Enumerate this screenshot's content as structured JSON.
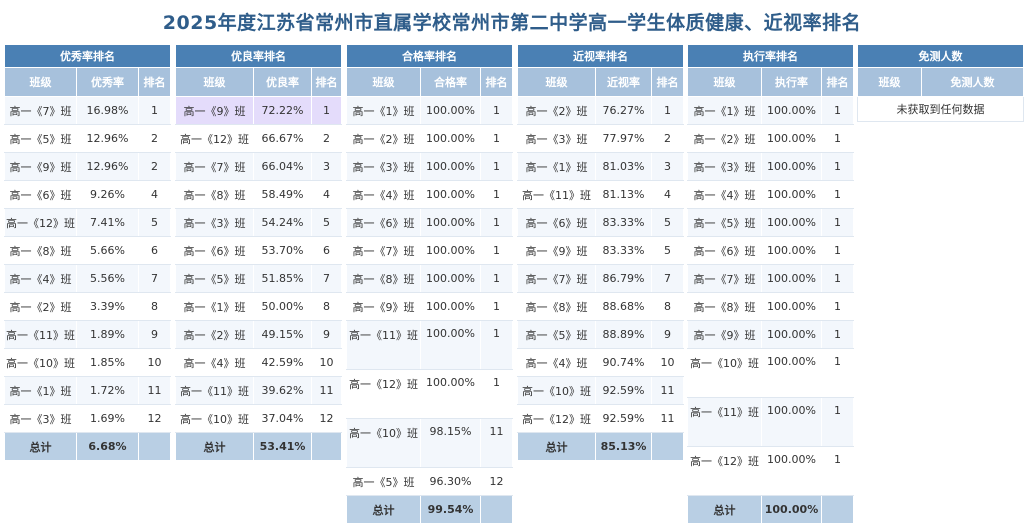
{
  "title": "2025年度江苏省常州市直属学校常州市第二中学高一学生体质健康、近视率排名",
  "panels": [
    {
      "id": "excellent",
      "header": "优秀率排名",
      "columns": [
        "班级",
        "优秀率",
        "排名"
      ],
      "rows": [
        [
          "高一《7》班",
          "16.98%",
          "1"
        ],
        [
          "高一《5》班",
          "12.96%",
          "2"
        ],
        [
          "高一《9》班",
          "12.96%",
          "2"
        ],
        [
          "高一《6》班",
          "9.26%",
          "4"
        ],
        [
          "高一《12》班",
          "7.41%",
          "5"
        ],
        [
          "高一《8》班",
          "5.66%",
          "6"
        ],
        [
          "高一《4》班",
          "5.56%",
          "7"
        ],
        [
          "高一《2》班",
          "3.39%",
          "8"
        ],
        [
          "高一《11》班",
          "1.89%",
          "9"
        ],
        [
          "高一《10》班",
          "1.85%",
          "10"
        ],
        [
          "高一《1》班",
          "1.72%",
          "11"
        ],
        [
          "高一《3》班",
          "1.69%",
          "12"
        ]
      ],
      "total": [
        "总计",
        "6.68%",
        ""
      ]
    },
    {
      "id": "good",
      "header": "优良率排名",
      "columns": [
        "班级",
        "优良率",
        "排名"
      ],
      "rows": [
        [
          "高一《9》班",
          "72.22%",
          "1"
        ],
        [
          "高一《12》班",
          "66.67%",
          "2"
        ],
        [
          "高一《7》班",
          "66.04%",
          "3"
        ],
        [
          "高一《8》班",
          "58.49%",
          "4"
        ],
        [
          "高一《3》班",
          "54.24%",
          "5"
        ],
        [
          "高一《6》班",
          "53.70%",
          "6"
        ],
        [
          "高一《5》班",
          "51.85%",
          "7"
        ],
        [
          "高一《1》班",
          "50.00%",
          "8"
        ],
        [
          "高一《2》班",
          "49.15%",
          "9"
        ],
        [
          "高一《4》班",
          "42.59%",
          "10"
        ],
        [
          "高一《11》班",
          "39.62%",
          "11"
        ],
        [
          "高一《10》班",
          "37.04%",
          "12"
        ]
      ],
      "total": [
        "总计",
        "53.41%",
        ""
      ]
    },
    {
      "id": "pass",
      "header": "合格率排名",
      "columns": [
        "班级",
        "合格率",
        "排名"
      ],
      "rows": [
        [
          "高一《1》班",
          "100.00%",
          "1"
        ],
        [
          "高一《2》班",
          "100.00%",
          "1"
        ],
        [
          "高一《3》班",
          "100.00%",
          "1"
        ],
        [
          "高一《4》班",
          "100.00%",
          "1"
        ],
        [
          "高一《6》班",
          "100.00%",
          "1"
        ],
        [
          "高一《7》班",
          "100.00%",
          "1"
        ],
        [
          "高一《8》班",
          "100.00%",
          "1"
        ],
        [
          "高一《9》班",
          "100.00%",
          "1"
        ],
        [
          "高一《11》班",
          "100.00%",
          "1"
        ],
        [
          "高一《12》班",
          "100.00%",
          "1"
        ],
        [
          "高一《10》班",
          "98.15%",
          "11"
        ],
        [
          "高一《5》班",
          "96.30%",
          "12"
        ]
      ],
      "total": [
        "总计",
        "99.54%",
        ""
      ]
    },
    {
      "id": "myopia",
      "header": "近视率排名",
      "columns": [
        "班级",
        "近视率",
        "排名"
      ],
      "rows": [
        [
          "高一《2》班",
          "76.27%",
          "1"
        ],
        [
          "高一《3》班",
          "77.97%",
          "2"
        ],
        [
          "高一《1》班",
          "81.03%",
          "3"
        ],
        [
          "高一《11》班",
          "81.13%",
          "4"
        ],
        [
          "高一《6》班",
          "83.33%",
          "5"
        ],
        [
          "高一《9》班",
          "83.33%",
          "5"
        ],
        [
          "高一《7》班",
          "86.79%",
          "7"
        ],
        [
          "高一《8》班",
          "88.68%",
          "8"
        ],
        [
          "高一《5》班",
          "88.89%",
          "9"
        ],
        [
          "高一《4》班",
          "90.74%",
          "10"
        ],
        [
          "高一《10》班",
          "92.59%",
          "11"
        ],
        [
          "高一《12》班",
          "92.59%",
          "11"
        ]
      ],
      "total": [
        "总计",
        "85.13%",
        ""
      ]
    },
    {
      "id": "execution",
      "header": "执行率排名",
      "columns": [
        "班级",
        "执行率",
        "排名"
      ],
      "rows": [
        [
          "高一《1》班",
          "100.00%",
          "1"
        ],
        [
          "高一《2》班",
          "100.00%",
          "1"
        ],
        [
          "高一《3》班",
          "100.00%",
          "1"
        ],
        [
          "高一《4》班",
          "100.00%",
          "1"
        ],
        [
          "高一《5》班",
          "100.00%",
          "1"
        ],
        [
          "高一《6》班",
          "100.00%",
          "1"
        ],
        [
          "高一《7》班",
          "100.00%",
          "1"
        ],
        [
          "高一《8》班",
          "100.00%",
          "1"
        ],
        [
          "高一《9》班",
          "100.00%",
          "1"
        ],
        [
          "高一《10》班",
          "100.00%",
          "1"
        ],
        [
          "高一《11》班",
          "100.00%",
          "1"
        ],
        [
          "高一《12》班",
          "100.00%",
          "1"
        ]
      ],
      "total": [
        "总计",
        "100.00%",
        ""
      ]
    },
    {
      "id": "exempt",
      "header": "免测人数",
      "columns": [
        "班级",
        "免测人数"
      ],
      "empty": "未获取到任何数据"
    }
  ]
}
